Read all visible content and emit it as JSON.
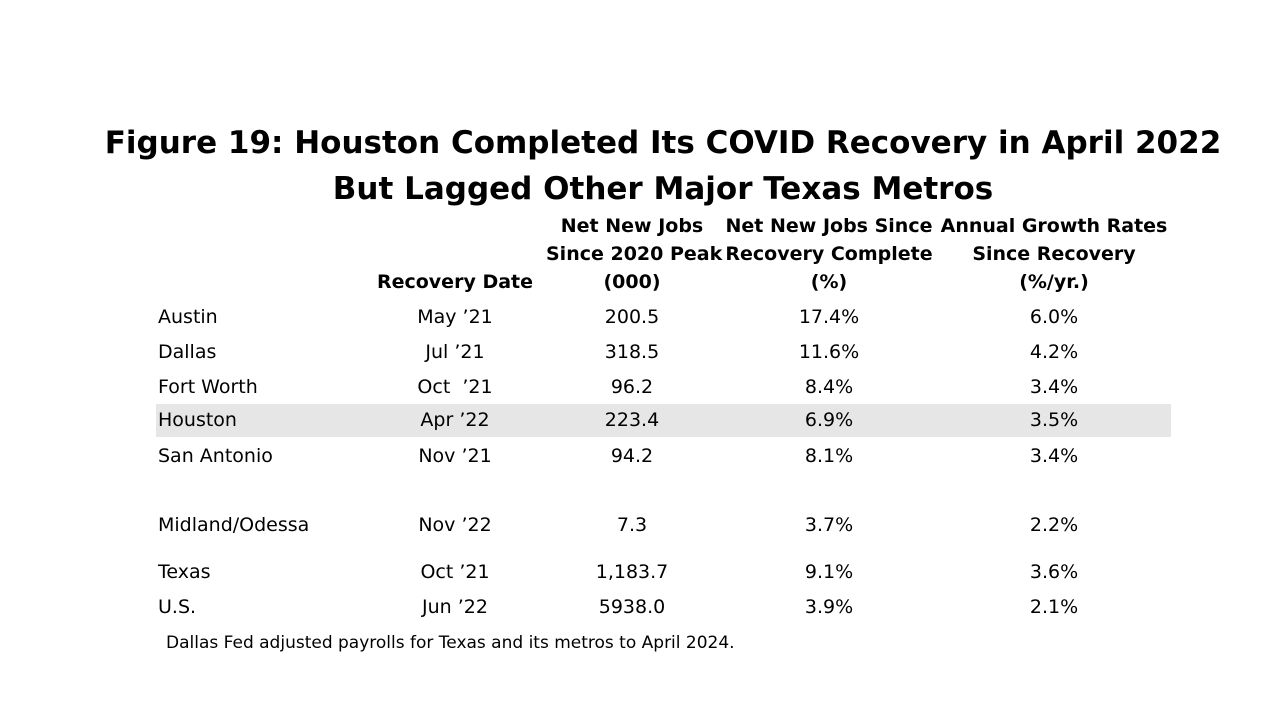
{
  "title": {
    "line1": "Figure 19: Houston Completed Its COVID Recovery in April 2022",
    "line2": "But Lagged Other Major Texas Metros"
  },
  "headers": {
    "recovery_date": [
      "Recovery Date"
    ],
    "net_new_jobs": [
      "Net New Jobs",
      "Since 2020 Peak",
      "(000)"
    ],
    "net_new_jobs_pct": [
      "Net New Jobs Since",
      "Recovery Complete",
      "(%)"
    ],
    "annual_growth": [
      "Annual Growth Rates",
      "Since Recovery",
      "(%/yr.)"
    ]
  },
  "rows": [
    {
      "name": "Austin",
      "date": "May ’21",
      "jobs": "200.5",
      "pct": "17.4%",
      "rate": "6.0%"
    },
    {
      "name": "Dallas",
      "date": "Jul ’21",
      "jobs": "318.5",
      "pct": "11.6%",
      "rate": "4.2%"
    },
    {
      "name": "Fort Worth",
      "date": "Oct  ’21",
      "jobs": "96.2",
      "pct": "8.4%",
      "rate": "3.4%"
    },
    {
      "name": "Houston",
      "date": "Apr ’22",
      "jobs": "223.4",
      "pct": "6.9%",
      "rate": "3.5%"
    },
    {
      "name": "San Antonio",
      "date": "Nov ’21",
      "jobs": "94.2",
      "pct": "8.1%",
      "rate": "3.4%"
    },
    {
      "name": "Midland/Odessa",
      "date": "Nov ’22",
      "jobs": "7.3",
      "pct": "3.7%",
      "rate": "2.2%"
    },
    {
      "name": "Texas",
      "date": "Oct ’21",
      "jobs": "1,183.7",
      "pct": "9.1%",
      "rate": "3.6%"
    },
    {
      "name": "U.S.",
      "date": "Jun ’22",
      "jobs": "5938.0",
      "pct": "3.9%",
      "rate": "2.1%"
    }
  ],
  "highlight_color": "#e6e6e6",
  "note": "Dallas Fed adjusted payrolls for Texas and its metros to April 2024."
}
